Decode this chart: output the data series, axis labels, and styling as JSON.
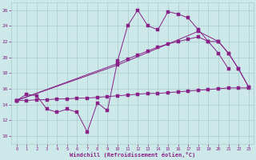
{
  "bg_color": "#cce8e8",
  "grid_color": "#aacccc",
  "line_color": "#882288",
  "xlabel": "Windchill (Refroidissement éolien,°C)",
  "xlim": [
    -0.5,
    23.5
  ],
  "ylim": [
    9,
    27
  ],
  "yticks": [
    10,
    12,
    14,
    16,
    18,
    20,
    22,
    24,
    26
  ],
  "xticks": [
    0,
    1,
    2,
    3,
    4,
    5,
    6,
    7,
    8,
    9,
    10,
    11,
    12,
    13,
    14,
    15,
    16,
    17,
    18,
    19,
    20,
    21,
    22,
    23
  ],
  "line1_x": [
    0,
    1,
    2,
    3,
    4,
    5,
    6,
    7,
    8,
    9,
    10,
    11,
    12,
    13,
    14,
    15,
    16,
    17,
    18,
    19,
    20,
    21
  ],
  "line1_y": [
    14.5,
    15.3,
    15.1,
    13.4,
    13.0,
    13.4,
    13.0,
    10.5,
    14.2,
    13.2,
    19.5,
    24.0,
    26.0,
    24.0,
    23.5,
    25.8,
    25.5,
    25.0,
    23.5,
    22.0,
    20.5,
    18.5
  ],
  "line2_x": [
    0,
    10,
    11,
    12,
    13,
    14,
    15,
    16,
    17,
    18,
    19,
    20,
    21,
    22,
    23
  ],
  "line2_y": [
    14.5,
    19.2,
    19.8,
    20.3,
    20.8,
    21.3,
    21.7,
    22.0,
    22.3,
    22.6,
    22.0,
    22.0,
    20.5,
    18.5,
    16.2
  ],
  "line3_x": [
    0,
    1,
    2,
    3,
    4,
    5,
    6,
    7,
    8,
    9,
    10,
    11,
    12,
    13,
    14,
    15,
    16,
    17,
    18,
    19,
    20,
    21,
    22,
    23
  ],
  "line3_y": [
    14.5,
    14.5,
    14.6,
    14.6,
    14.7,
    14.7,
    14.8,
    14.8,
    14.9,
    15.0,
    15.1,
    15.2,
    15.3,
    15.4,
    15.4,
    15.5,
    15.6,
    15.7,
    15.8,
    15.9,
    16.0,
    16.1,
    16.1,
    16.1
  ],
  "line4_x": [
    0,
    10,
    18,
    20,
    21,
    22,
    23
  ],
  "line4_y": [
    14.5,
    19.0,
    23.3,
    22.0,
    20.5,
    18.5,
    16.2
  ]
}
